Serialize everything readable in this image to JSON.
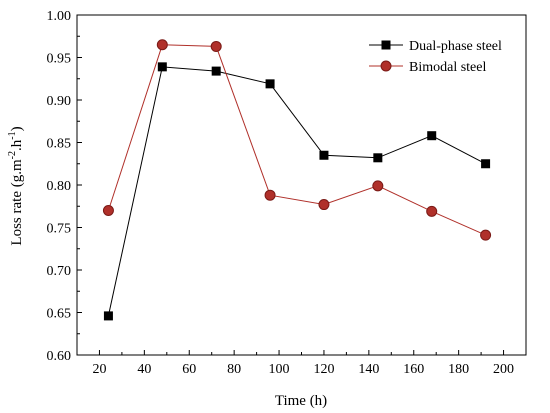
{
  "chart_data": {
    "type": "line",
    "xlabel": "Time (h)",
    "ylabel": {
      "main": "Loss rate (g.m",
      "sup1": "-2",
      "mid": ".h",
      "sup2": "-1",
      "end": ")"
    },
    "xlim": [
      10,
      210
    ],
    "ylim": [
      0.6,
      1.0
    ],
    "xticks": [
      20,
      40,
      60,
      80,
      100,
      120,
      140,
      160,
      180,
      200
    ],
    "yticks": [
      0.6,
      0.65,
      0.7,
      0.75,
      0.8,
      0.85,
      0.9,
      0.95,
      1.0
    ],
    "ytick_labels": [
      "0.60",
      "0.65",
      "0.70",
      "0.75",
      "0.80",
      "0.85",
      "0.90",
      "0.95",
      "1.00"
    ],
    "legend_position": "top-right",
    "grid": false,
    "series": [
      {
        "name": "Dual-phase steel",
        "marker": "square",
        "line_color": "#000000",
        "marker_fill": "#000000",
        "x": [
          24,
          48,
          72,
          96,
          120,
          144,
          168,
          192
        ],
        "y": [
          0.646,
          0.939,
          0.934,
          0.919,
          0.835,
          0.832,
          0.858,
          0.825
        ]
      },
      {
        "name": "Bimodal steel",
        "marker": "circle",
        "line_color": "#b0302a",
        "marker_fill": "#b0302a",
        "marker_stroke": "#7a1a16",
        "x": [
          24,
          48,
          72,
          96,
          120,
          144,
          168,
          192
        ],
        "y": [
          0.77,
          0.965,
          0.963,
          0.788,
          0.777,
          0.799,
          0.769,
          0.741
        ]
      }
    ]
  }
}
